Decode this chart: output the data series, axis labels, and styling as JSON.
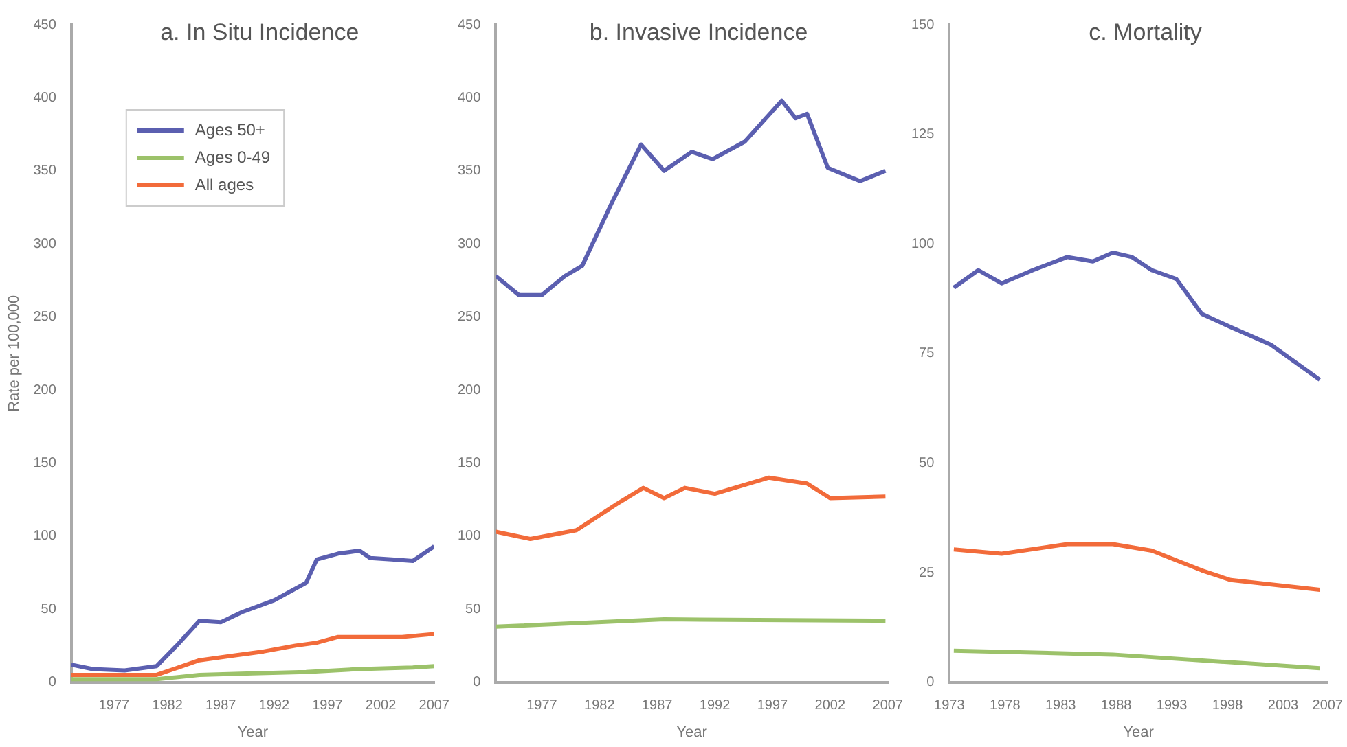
{
  "chart_data": [
    {
      "type": "line",
      "title": "a. In Situ Incidence",
      "xlabel": "Year",
      "ylabel": "Rate per 100,000",
      "xlim": [
        1973,
        2007
      ],
      "xticks": [
        1977,
        1982,
        1987,
        1992,
        1997,
        2002,
        2007
      ],
      "ylim": [
        0,
        450
      ],
      "yticks": [
        0,
        50,
        100,
        150,
        200,
        250,
        300,
        350,
        400,
        450
      ],
      "grid": false,
      "legend": "top left",
      "marker": "none",
      "series": [
        {
          "name": "Ages 50+",
          "color": "#5b5fb0",
          "x": [
            1973,
            1975,
            1978,
            1981,
            1983,
            1985,
            1987,
            1989,
            1992,
            1995,
            1996,
            1998,
            2000,
            2001,
            2003,
            2005,
            2007
          ],
          "values": [
            12,
            9,
            8,
            11,
            26,
            42,
            41,
            48,
            56,
            68,
            84,
            88,
            90,
            85,
            84,
            83,
            93
          ]
        },
        {
          "name": "Ages 0-49",
          "color": "#9cc26a",
          "x": [
            1973,
            1981,
            1985,
            1990,
            1995,
            2000,
            2005,
            2007
          ],
          "values": [
            2,
            2,
            5,
            6,
            7,
            9,
            10,
            11
          ]
        },
        {
          "name": "All ages",
          "color": "#f26b3a",
          "x": [
            1973,
            1981,
            1983,
            1985,
            1988,
            1991,
            1994,
            1996,
            1998,
            2001,
            2004,
            2007
          ],
          "values": [
            5,
            5,
            10,
            15,
            18,
            21,
            25,
            27,
            31,
            31,
            31,
            33
          ]
        }
      ]
    },
    {
      "type": "line",
      "title": "b. Invasive Incidence",
      "xlabel": "Year",
      "xlim": [
        1973,
        2007
      ],
      "xticks": [
        1977,
        1982,
        1987,
        1992,
        1997,
        2002,
        2007
      ],
      "ylim": [
        0,
        450
      ],
      "yticks": [
        0,
        50,
        100,
        150,
        200,
        250,
        300,
        350,
        400,
        450
      ],
      "grid": false,
      "marker": "none",
      "series": [
        {
          "color": "#5b5fb0",
          "x": [
            1973,
            1975,
            1977,
            1979,
            1980.5,
            1983,
            1985.6,
            1987.6,
            1990,
            1991.8,
            1994.6,
            1997.8,
            1999,
            2000,
            2001.8,
            2004.6,
            2006.8
          ],
          "values": [
            278,
            265,
            265,
            278,
            285,
            327,
            368,
            350,
            363,
            358,
            370,
            398,
            386,
            389,
            352,
            343,
            350
          ]
        },
        {
          "color": "#9cc26a",
          "x": [
            1973,
            1987.6,
            2006.8
          ],
          "values": [
            38,
            43,
            42
          ]
        },
        {
          "color": "#f26b3a",
          "x": [
            1973,
            1976,
            1980,
            1983.5,
            1985.8,
            1987.6,
            1989.4,
            1992,
            1996.7,
            2000,
            2002,
            2006.8
          ],
          "values": [
            103,
            98,
            104,
            122,
            133,
            126,
            133,
            129,
            140,
            136,
            126,
            127
          ]
        }
      ]
    },
    {
      "type": "line",
      "title": "c. Mortality",
      "xlabel": "Year",
      "xlim": [
        1973,
        2007
      ],
      "xticks": [
        1973,
        1978,
        1983,
        1988,
        1993,
        1998,
        2003,
        2007
      ],
      "ylim": [
        0,
        150
      ],
      "yticks": [
        0,
        25,
        50,
        75,
        100,
        125,
        150
      ],
      "grid": false,
      "marker": "none",
      "series": [
        {
          "color": "#5b5fb0",
          "x": [
            1973.4,
            1975.6,
            1977.7,
            1980.5,
            1983.6,
            1985.9,
            1987.7,
            1989.4,
            1991.2,
            1993.4,
            1995.7,
            1998.3,
            2001.9,
            2006.3
          ],
          "values": [
            90,
            94,
            91,
            94,
            97,
            96,
            98,
            97,
            94,
            92,
            84,
            81,
            77,
            69
          ]
        },
        {
          "color": "#9cc26a",
          "x": [
            1973.4,
            1987.7,
            2006.3
          ],
          "values": [
            7.2,
            6.3,
            3.2
          ]
        },
        {
          "color": "#f26b3a",
          "x": [
            1973.4,
            1977.7,
            1983.6,
            1987.7,
            1991.2,
            1995.7,
            1998.3,
            2006.3
          ],
          "values": [
            30.3,
            29.3,
            31.5,
            31.5,
            30,
            25.5,
            23.3,
            21.1
          ]
        }
      ]
    }
  ]
}
